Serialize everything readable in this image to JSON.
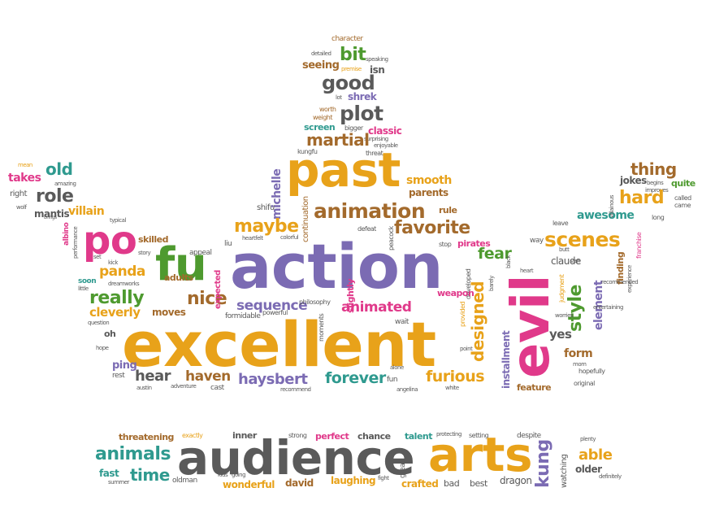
{
  "palette": {
    "orange": "#e8a21a",
    "purple": "#7b6bb3",
    "green": "#4e9a2f",
    "pink": "#e0398a",
    "gray": "#5a5a5a",
    "teal": "#2f9a8f",
    "brown": "#a36a2c"
  },
  "words": [
    {
      "text": "character",
      "color": "brown"
    },
    {
      "text": "bit",
      "color": "green"
    },
    {
      "text": "speaking",
      "color": "gray"
    },
    {
      "text": "detailed",
      "color": "gray"
    },
    {
      "text": "seeing",
      "color": "brown"
    },
    {
      "text": "premise",
      "color": "orange"
    },
    {
      "text": "isn",
      "color": "gray"
    },
    {
      "text": "good",
      "color": "gray"
    },
    {
      "text": "lot",
      "color": "gray"
    },
    {
      "text": "shrek",
      "color": "purple"
    },
    {
      "text": "plot",
      "color": "gray"
    },
    {
      "text": "worth",
      "color": "brown"
    },
    {
      "text": "weight",
      "color": "brown"
    },
    {
      "text": "screen",
      "color": "teal"
    },
    {
      "text": "bigger",
      "color": "gray"
    },
    {
      "text": "classic",
      "color": "pink"
    },
    {
      "text": "surprising",
      "color": "gray"
    },
    {
      "text": "enjoyable",
      "color": "gray"
    },
    {
      "text": "martial",
      "color": "brown"
    },
    {
      "text": "threat",
      "color": "gray"
    },
    {
      "text": "kungfu",
      "color": "gray"
    },
    {
      "text": "past",
      "color": "orange"
    },
    {
      "text": "michelle",
      "color": "purple"
    },
    {
      "text": "smooth",
      "color": "orange"
    },
    {
      "text": "parents",
      "color": "brown"
    },
    {
      "text": "shifu",
      "color": "gray"
    },
    {
      "text": "continuation",
      "color": "brown"
    },
    {
      "text": "animation",
      "color": "brown"
    },
    {
      "text": "rule",
      "color": "brown"
    },
    {
      "text": "defeat",
      "color": "gray"
    },
    {
      "text": "peacock",
      "color": "gray"
    },
    {
      "text": "maybe",
      "color": "orange"
    },
    {
      "text": "favorite",
      "color": "brown"
    },
    {
      "text": "pirates",
      "color": "pink"
    },
    {
      "text": "stop",
      "color": "gray"
    },
    {
      "text": "colorful",
      "color": "gray"
    },
    {
      "text": "heartfelt",
      "color": "gray"
    },
    {
      "text": "liu",
      "color": "gray"
    },
    {
      "text": "appeal",
      "color": "gray"
    },
    {
      "text": "action",
      "color": "purple"
    },
    {
      "text": "po",
      "color": "pink"
    },
    {
      "text": "fu",
      "color": "green"
    },
    {
      "text": "skilled",
      "color": "brown"
    },
    {
      "text": "mean",
      "color": "orange"
    },
    {
      "text": "takes",
      "color": "pink"
    },
    {
      "text": "old",
      "color": "teal"
    },
    {
      "text": "amazing",
      "color": "gray"
    },
    {
      "text": "right",
      "color": "gray"
    },
    {
      "text": "role",
      "color": "gray"
    },
    {
      "text": "wolf",
      "color": "gray"
    },
    {
      "text": "mantis",
      "color": "gray"
    },
    {
      "text": "brings",
      "color": "gray"
    },
    {
      "text": "villain",
      "color": "orange"
    },
    {
      "text": "typical",
      "color": "gray"
    },
    {
      "text": "albino",
      "color": "pink"
    },
    {
      "text": "performance",
      "color": "gray"
    },
    {
      "text": "story",
      "color": "gray"
    },
    {
      "text": "set",
      "color": "gray"
    },
    {
      "text": "kick",
      "color": "gray"
    },
    {
      "text": "panda",
      "color": "orange"
    },
    {
      "text": "soon",
      "color": "teal"
    },
    {
      "text": "little",
      "color": "gray"
    },
    {
      "text": "dreamworks",
      "color": "gray"
    },
    {
      "text": "adults",
      "color": "brown"
    },
    {
      "text": "really",
      "color": "green"
    },
    {
      "text": "nice",
      "color": "brown"
    },
    {
      "text": "cleverly",
      "color": "orange"
    },
    {
      "text": "moves",
      "color": "brown"
    },
    {
      "text": "question",
      "color": "gray"
    },
    {
      "text": "oh",
      "color": "gray"
    },
    {
      "text": "hope",
      "color": "gray"
    },
    {
      "text": "excellent",
      "color": "orange"
    },
    {
      "text": "expected",
      "color": "pink"
    },
    {
      "text": "sequence",
      "color": "purple"
    },
    {
      "text": "formidable",
      "color": "gray"
    },
    {
      "text": "powerful",
      "color": "gray"
    },
    {
      "text": "philosophy",
      "color": "gray"
    },
    {
      "text": "animated",
      "color": "pink"
    },
    {
      "text": "slightly",
      "color": "pink"
    },
    {
      "text": "moments",
      "color": "gray"
    },
    {
      "text": "wait",
      "color": "gray"
    },
    {
      "text": "ping",
      "color": "purple"
    },
    {
      "text": "rest",
      "color": "gray"
    },
    {
      "text": "hear",
      "color": "gray"
    },
    {
      "text": "haven",
      "color": "brown"
    },
    {
      "text": "austin",
      "color": "gray"
    },
    {
      "text": "adventure",
      "color": "gray"
    },
    {
      "text": "cast",
      "color": "gray"
    },
    {
      "text": "haysbert",
      "color": "purple"
    },
    {
      "text": "forever",
      "color": "teal"
    },
    {
      "text": "recommend",
      "color": "gray"
    },
    {
      "text": "fun",
      "color": "gray"
    },
    {
      "text": "angelina",
      "color": "gray"
    },
    {
      "text": "alone",
      "color": "gray"
    },
    {
      "text": "furious",
      "color": "orange"
    },
    {
      "text": "white",
      "color": "gray"
    },
    {
      "text": "fear",
      "color": "green"
    },
    {
      "text": "designed",
      "color": "orange"
    },
    {
      "text": "developed",
      "color": "gray"
    },
    {
      "text": "provided",
      "color": "orange"
    },
    {
      "text": "weapon",
      "color": "pink"
    },
    {
      "text": "point",
      "color": "gray"
    },
    {
      "text": "installment",
      "color": "purple"
    },
    {
      "text": "evil",
      "color": "pink"
    },
    {
      "text": "claude",
      "color": "gray"
    },
    {
      "text": "barely",
      "color": "gray"
    },
    {
      "text": "black",
      "color": "gray"
    },
    {
      "text": "heart",
      "color": "gray"
    },
    {
      "text": "feature",
      "color": "brown"
    },
    {
      "text": "yes",
      "color": "gray"
    },
    {
      "text": "way",
      "color": "gray"
    },
    {
      "text": "leave",
      "color": "gray"
    },
    {
      "text": "butt",
      "color": "gray"
    },
    {
      "text": "van",
      "color": "gray"
    },
    {
      "text": "scenes",
      "color": "orange"
    },
    {
      "text": "style",
      "color": "green"
    },
    {
      "text": "element",
      "color": "purple"
    },
    {
      "text": "form",
      "color": "brown"
    },
    {
      "text": "judgment",
      "color": "orange"
    },
    {
      "text": "worries",
      "color": "gray"
    },
    {
      "text": "mom",
      "color": "gray"
    },
    {
      "text": "hopefully",
      "color": "gray"
    },
    {
      "text": "original",
      "color": "gray"
    },
    {
      "text": "awesome",
      "color": "teal"
    },
    {
      "text": "thing",
      "color": "brown"
    },
    {
      "text": "jokes",
      "color": "gray"
    },
    {
      "text": "begins",
      "color": "gray"
    },
    {
      "text": "improves",
      "color": "gray"
    },
    {
      "text": "quite",
      "color": "green"
    },
    {
      "text": "hard",
      "color": "orange"
    },
    {
      "text": "villainous",
      "color": "gray"
    },
    {
      "text": "called",
      "color": "gray"
    },
    {
      "text": "came",
      "color": "gray"
    },
    {
      "text": "long",
      "color": "gray"
    },
    {
      "text": "franchise",
      "color": "pink"
    },
    {
      "text": "finding",
      "color": "brown"
    },
    {
      "text": "recommended",
      "color": "gray"
    },
    {
      "text": "experience",
      "color": "gray"
    },
    {
      "text": "entertaining",
      "color": "gray"
    },
    {
      "text": "threatening",
      "color": "brown"
    },
    {
      "text": "exactly",
      "color": "orange"
    },
    {
      "text": "inner",
      "color": "gray"
    },
    {
      "text": "strong",
      "color": "gray"
    },
    {
      "text": "perfect",
      "color": "pink"
    },
    {
      "text": "chance",
      "color": "gray"
    },
    {
      "text": "talent",
      "color": "teal"
    },
    {
      "text": "protecting",
      "color": "gray"
    },
    {
      "text": "setting",
      "color": "gray"
    },
    {
      "text": "despite",
      "color": "gray"
    },
    {
      "text": "plenty",
      "color": "gray"
    },
    {
      "text": "animals",
      "color": "teal"
    },
    {
      "text": "audience",
      "color": "gray"
    },
    {
      "text": "arts",
      "color": "orange"
    },
    {
      "text": "kung",
      "color": "purple"
    },
    {
      "text": "watching",
      "color": "gray"
    },
    {
      "text": "able",
      "color": "orange"
    },
    {
      "text": "older",
      "color": "gray"
    },
    {
      "text": "definitely",
      "color": "gray"
    },
    {
      "text": "fast",
      "color": "teal"
    },
    {
      "text": "summer",
      "color": "gray"
    },
    {
      "text": "time",
      "color": "teal"
    },
    {
      "text": "kids",
      "color": "gray"
    },
    {
      "text": "going",
      "color": "gray"
    },
    {
      "text": "oldman",
      "color": "gray"
    },
    {
      "text": "wonderful",
      "color": "orange"
    },
    {
      "text": "david",
      "color": "brown"
    },
    {
      "text": "laughing",
      "color": "orange"
    },
    {
      "text": "fight",
      "color": "gray"
    },
    {
      "text": "great",
      "color": "gray"
    },
    {
      "text": "crafted",
      "color": "orange"
    },
    {
      "text": "bad",
      "color": "gray"
    },
    {
      "text": "best",
      "color": "gray"
    },
    {
      "text": "dragon",
      "color": "gray"
    }
  ]
}
